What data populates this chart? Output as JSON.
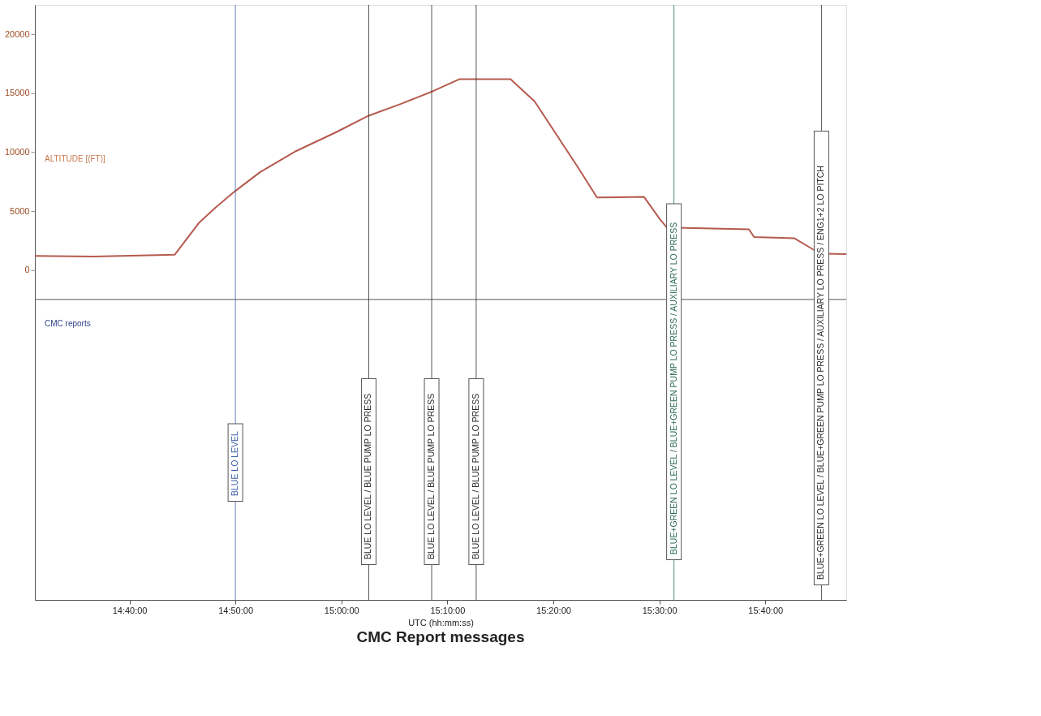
{
  "chart_data": {
    "type": "line",
    "title": "CMC Report messages",
    "xlabel": "UTC (hh:mm:ss)",
    "annotations": [
      "CMC reports"
    ],
    "xlim": [
      14.518,
      15.794
    ],
    "xticks": [
      {
        "value": 14.6667,
        "label": "14:40:00"
      },
      {
        "value": 14.8333,
        "label": "14:50:00"
      },
      {
        "value": 15.0,
        "label": "15:00:00"
      },
      {
        "value": 15.1667,
        "label": "15:10:00"
      },
      {
        "value": 15.3333,
        "label": "15:20:00"
      },
      {
        "value": 15.5,
        "label": "15:30:00"
      },
      {
        "value": 15.6667,
        "label": "15:40:00"
      }
    ],
    "ylim": [
      -28000,
      22500
    ],
    "yticks": [
      0,
      5000,
      10000,
      15000,
      20000
    ],
    "grid": false,
    "marker": "none",
    "line_style": "solid",
    "series": [
      {
        "name": "ALTITUDE [(FT)]",
        "color": "#b65a4e",
        "x": [
          14.518,
          14.611,
          14.738,
          14.776,
          14.802,
          14.833,
          14.872,
          14.929,
          14.992,
          15.043,
          15.094,
          15.145,
          15.186,
          15.266,
          15.304,
          15.374,
          15.402,
          15.476,
          15.501,
          15.512,
          15.641,
          15.649,
          15.712,
          15.737,
          15.752,
          15.794
        ],
        "values": [
          1200,
          1150,
          1300,
          4000,
          5300,
          6700,
          8300,
          10100,
          11700,
          13100,
          14100,
          15200,
          16200,
          16200,
          14300,
          8550,
          6150,
          6200,
          4300,
          3600,
          3450,
          2800,
          2700,
          1900,
          1400,
          1350
        ]
      }
    ],
    "ref_lines": [
      {
        "axis": "y",
        "value": -2500,
        "color": "#555555"
      },
      {
        "axis": "x",
        "value": 14.8333,
        "label": "BLUE LO LEVEL",
        "color": "#3a5fa8"
      },
      {
        "axis": "x",
        "value": 15.043,
        "label": "BLUE LO LEVEL / BLUE PUMP LO PRESS",
        "color": "#2b2b2b"
      },
      {
        "axis": "x",
        "value": 15.142,
        "label": "BLUE LO LEVEL / BLUE PUMP LO PRESS",
        "color": "#2b2b2b"
      },
      {
        "axis": "x",
        "value": 15.212,
        "label": "BLUE LO LEVEL / BLUE PUMP LO PRESS",
        "color": "#2b2b2b"
      },
      {
        "axis": "x",
        "value": 15.523,
        "label": "BLUE+GREEN LO LEVEL / BLUE+GREEN PUMP LO PRESS / AUXILIARY LO PRESS",
        "color": "#2e6e55"
      },
      {
        "axis": "x",
        "value": 15.755,
        "label": "BLUE+GREEN LO LEVEL / BLUE+GREEN PUMP LO PRESS / AUXILIARY LO PRESS  / ENG1+2 LO PITCH",
        "color": "#2b2b2b"
      }
    ]
  }
}
